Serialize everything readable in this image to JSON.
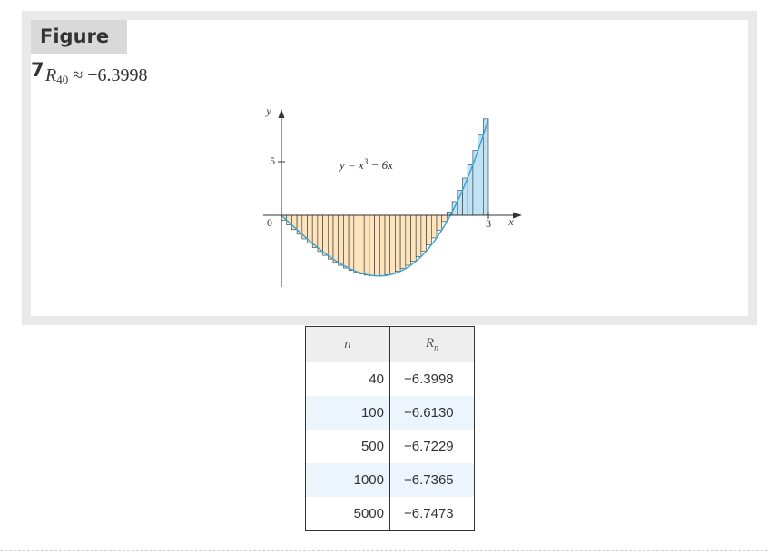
{
  "figure": {
    "label": "Figure 7",
    "caption": {
      "symbol": "R",
      "subscript": "40",
      "rest": " ≈ −6.3998"
    }
  },
  "chart_data": {
    "type": "bar",
    "description_function": "y = x^3 - 6x",
    "n": 40,
    "interval": [
      0,
      3
    ],
    "rule": "right endpoint",
    "x": [
      0.075,
      0.15,
      0.225,
      0.3,
      0.375,
      0.45,
      0.525,
      0.6,
      0.675,
      0.75,
      0.825,
      0.9,
      0.975,
      1.05,
      1.125,
      1.2,
      1.275,
      1.35,
      1.425,
      1.5,
      1.575,
      1.65,
      1.725,
      1.8,
      1.875,
      1.95,
      2.025,
      2.1,
      2.175,
      2.25,
      2.325,
      2.4,
      2.475,
      2.55,
      2.625,
      2.7,
      2.775,
      2.85,
      2.925,
      3.0
    ],
    "values": [
      -0.45,
      -0.9,
      -1.34,
      -1.77,
      -2.2,
      -2.61,
      -3.01,
      -3.38,
      -3.74,
      -4.08,
      -4.39,
      -4.67,
      -4.92,
      -5.14,
      -5.33,
      -5.47,
      -5.58,
      -5.64,
      -5.66,
      -5.63,
      -5.54,
      -5.41,
      -5.22,
      -4.97,
      -4.66,
      -4.29,
      -3.85,
      -3.34,
      -2.76,
      -2.11,
      -1.38,
      -0.58,
      0.31,
      1.28,
      2.34,
      3.48,
      4.72,
      6.05,
      7.48,
      9.0
    ],
    "xlim": [
      0,
      3
    ],
    "ylim": [
      -6,
      9
    ],
    "xlabel": "x",
    "ylabel": "y",
    "x_ticks": [
      "0",
      "3"
    ],
    "y_ticks": [
      "5"
    ],
    "annotation": {
      "lhs": "y = x",
      "exp": "3",
      "rhs": " − 6x"
    },
    "colors": {
      "negative": "#fde4bc",
      "positive": "#bfe3f5",
      "curve": "#3aa7d8",
      "stroke": "#333333"
    }
  },
  "table": {
    "headers": [
      "n",
      "Rn"
    ],
    "rows": [
      {
        "n": "40",
        "r": "−6.3998"
      },
      {
        "n": "100",
        "r": "−6.6130"
      },
      {
        "n": "500",
        "r": "−6.7229"
      },
      {
        "n": "1000",
        "r": "−6.7365"
      },
      {
        "n": "5000",
        "r": "−6.7473"
      }
    ]
  }
}
